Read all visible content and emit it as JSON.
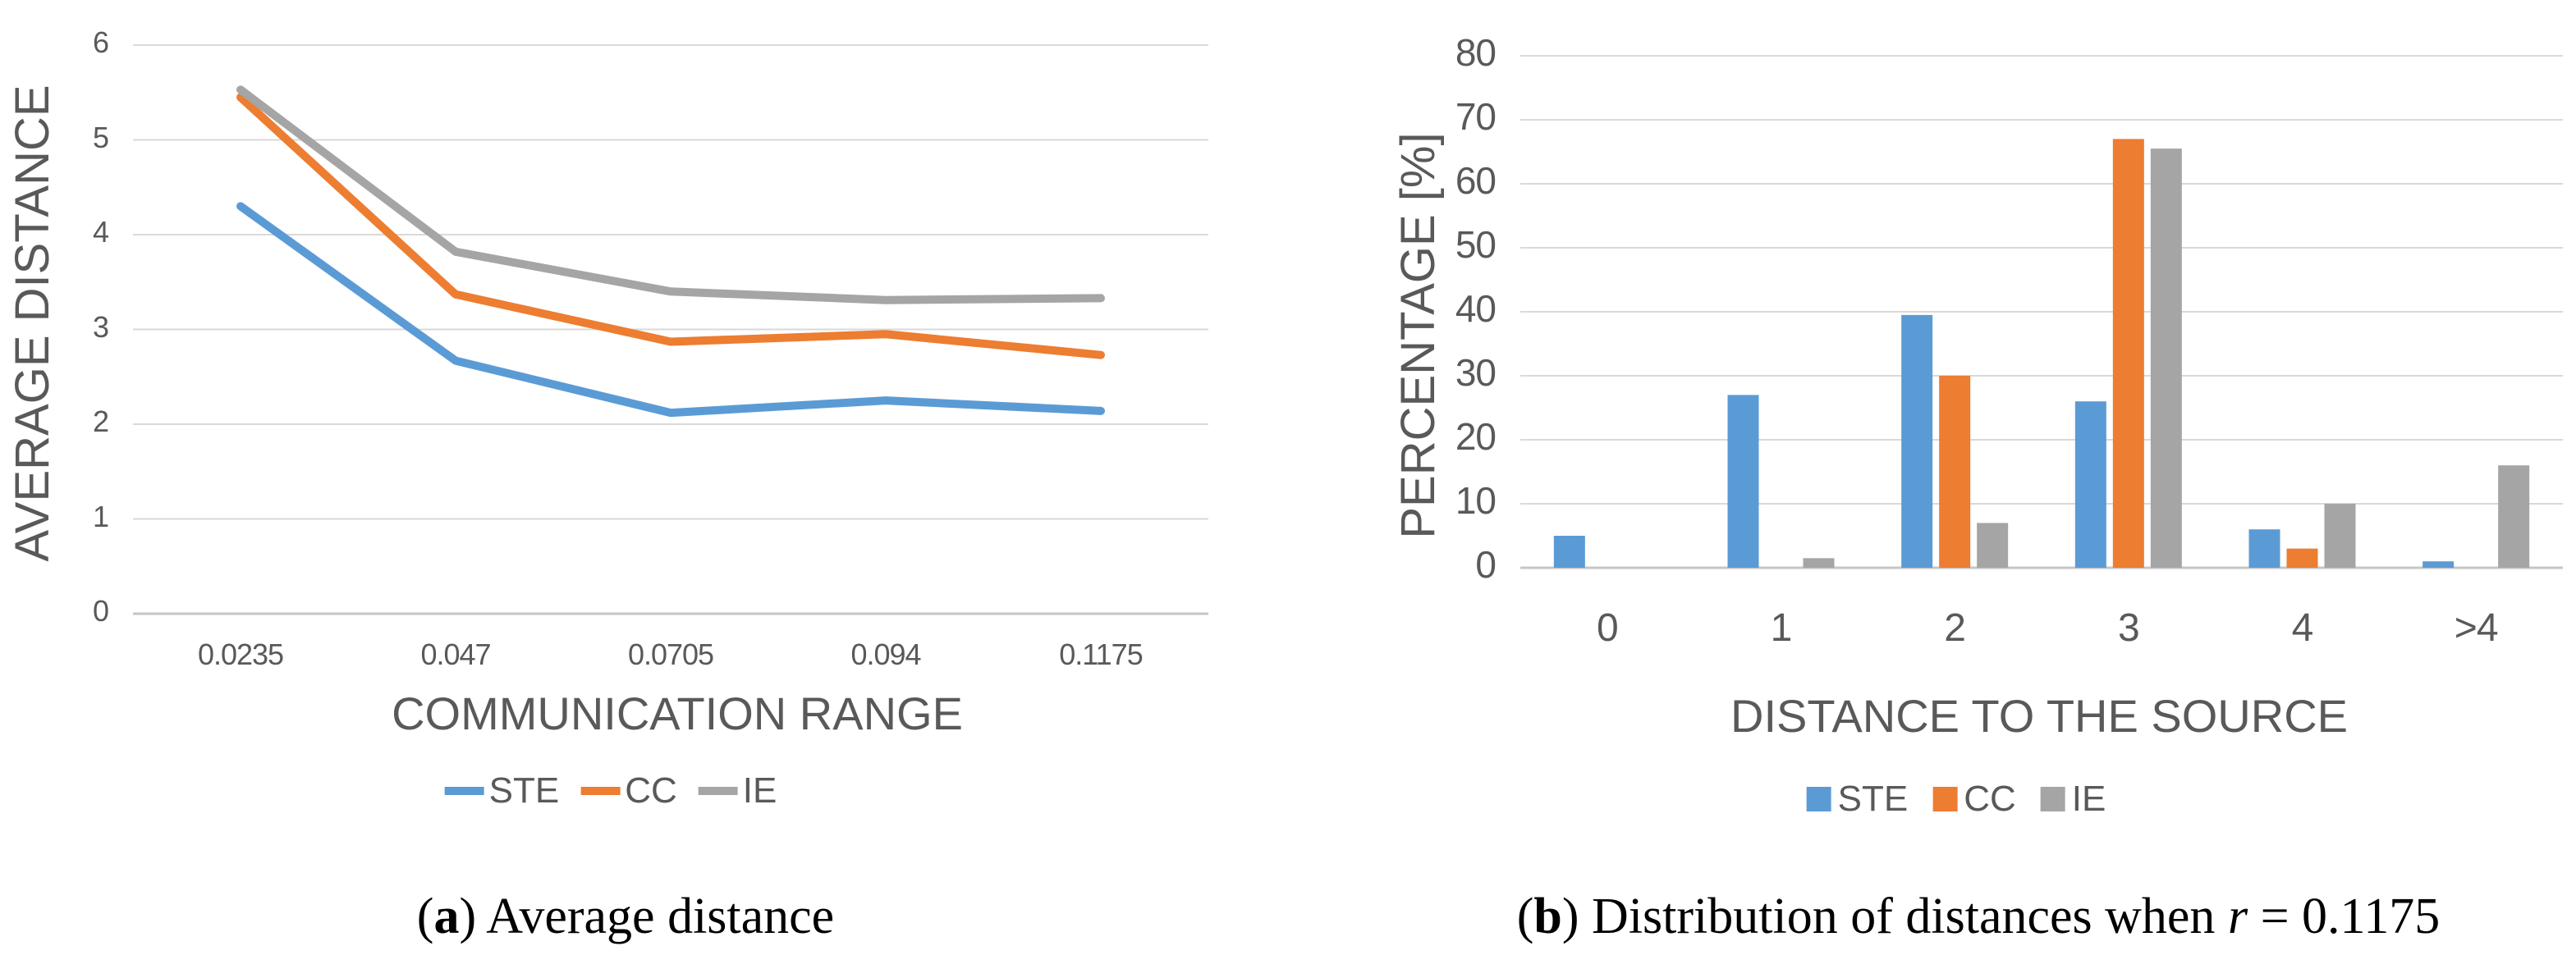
{
  "chart_data": [
    {
      "type": "line",
      "panel": "a",
      "title": "",
      "xlabel": "COMMUNICATION RANGE",
      "ylabel": "AVERAGE DISTANCE",
      "categories": [
        "0.0235",
        "0.047",
        "0.0705",
        "0.094",
        "0.1175"
      ],
      "ylim": [
        0,
        6
      ],
      "ytick_step": 1,
      "ytick_labels": [
        "0",
        "1",
        "2",
        "3",
        "4",
        "5",
        "6"
      ],
      "grid": "horizontal",
      "legend_position": "bottom",
      "series": [
        {
          "name": "STE",
          "color": "#5B9BD5",
          "values": [
            4.3,
            2.67,
            2.12,
            2.25,
            2.14
          ]
        },
        {
          "name": "CC",
          "color": "#ED7D31",
          "values": [
            5.45,
            3.37,
            2.87,
            2.95,
            2.73
          ]
        },
        {
          "name": "IE",
          "color": "#A5A5A5",
          "values": [
            5.53,
            3.82,
            3.4,
            3.31,
            3.33
          ]
        }
      ]
    },
    {
      "type": "bar",
      "panel": "b",
      "title": "",
      "xlabel": "DISTANCE TO THE SOURCE",
      "ylabel": "PERCENTAGE [%]",
      "categories": [
        "0",
        "1",
        "2",
        "3",
        "4",
        ">4"
      ],
      "ylim": [
        0,
        80
      ],
      "ytick_step": 10,
      "ytick_labels": [
        "0",
        "10",
        "20",
        "30",
        "40",
        "50",
        "60",
        "70",
        "80"
      ],
      "grid": "horizontal",
      "legend_position": "bottom",
      "series": [
        {
          "name": "STE",
          "color": "#5B9BD5",
          "values": [
            5,
            27,
            39.5,
            26,
            6,
            1
          ]
        },
        {
          "name": "CC",
          "color": "#ED7D31",
          "values": [
            0,
            0,
            30,
            67,
            3,
            0
          ]
        },
        {
          "name": "IE",
          "color": "#A5A5A5",
          "values": [
            0,
            1.5,
            7,
            65.5,
            10,
            16
          ]
        }
      ]
    }
  ],
  "colors": {
    "gridline": "#D9D9D9",
    "axis_line": "#C6C6C6",
    "axis_text": "#595959",
    "caption_text": "#000000"
  },
  "captions": {
    "a": {
      "open": "(",
      "label": "a",
      "close": ") ",
      "text": "Average distance"
    },
    "b": {
      "open": "(",
      "label": "b",
      "close": ") ",
      "text": "Distribution of distances when ",
      "variable": "r",
      "rest": " = 0.1175"
    }
  }
}
